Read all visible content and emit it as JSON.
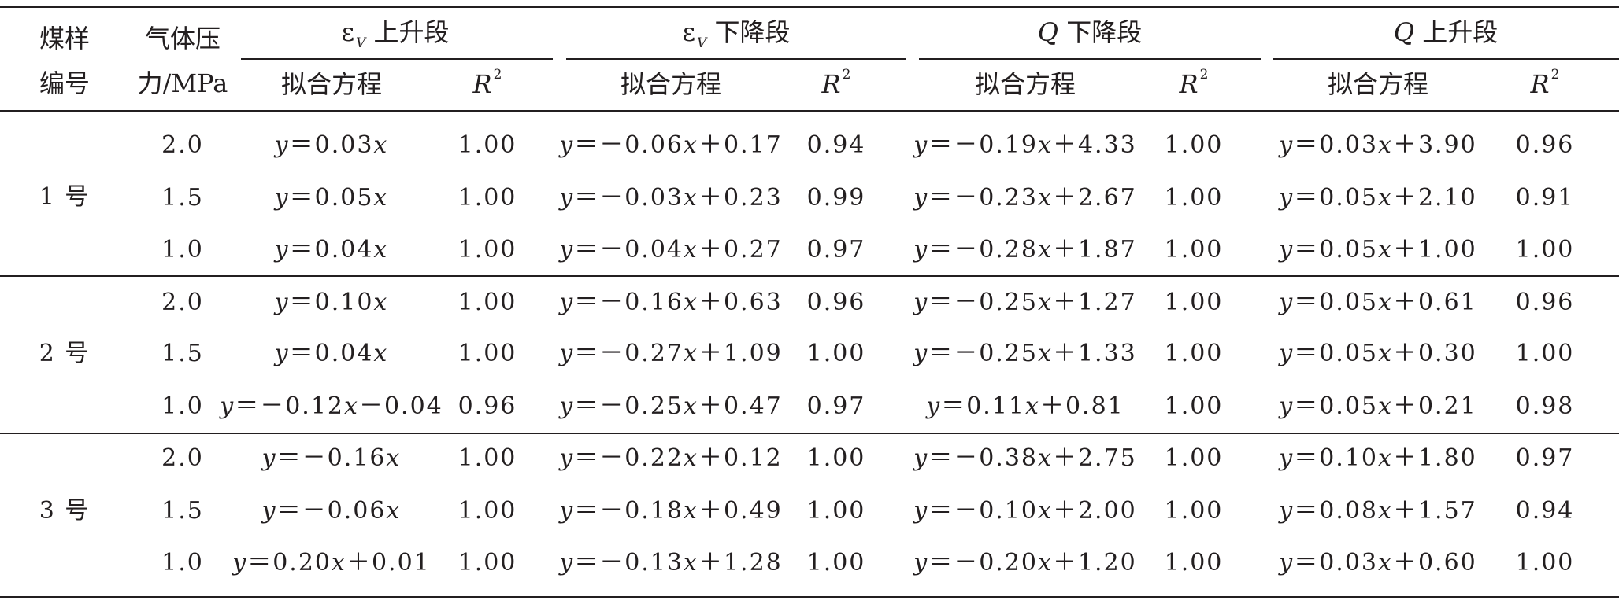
{
  "table": {
    "header": {
      "sample_col": [
        "煤样",
        "编号"
      ],
      "pressure_col": [
        "气体压",
        "力/MPa"
      ],
      "groups": [
        {
          "symbol": "ε",
          "subscript": "V",
          "suffix": " 上升段"
        },
        {
          "symbol": "ε",
          "subscript": "V",
          "suffix": " 下降段"
        },
        {
          "symbol": "Q",
          "subscript": "",
          "suffix": " 下降段"
        },
        {
          "symbol": "Q",
          "subscript": "",
          "suffix": " 上升段"
        }
      ],
      "fit_label": "拟合方程",
      "r2_letter": "R",
      "r2_power": "2"
    },
    "samples": [
      {
        "label": "1 号",
        "rows": [
          {
            "pressure": "2.0",
            "cells": [
              [
                "y＝0.03x",
                "1.00"
              ],
              [
                "y＝－0.06x＋0.17",
                "0.94"
              ],
              [
                "y＝－0.19x＋4.33",
                "1.00"
              ],
              [
                "y＝0.03x＋3.90",
                "0.96"
              ]
            ]
          },
          {
            "pressure": "1.5",
            "cells": [
              [
                "y＝0.05x",
                "1.00"
              ],
              [
                "y＝－0.03x＋0.23",
                "0.99"
              ],
              [
                "y＝－0.23x＋2.67",
                "1.00"
              ],
              [
                "y＝0.05x＋2.10",
                "0.91"
              ]
            ]
          },
          {
            "pressure": "1.0",
            "cells": [
              [
                "y＝0.04x",
                "1.00"
              ],
              [
                "y＝－0.04x＋0.27",
                "0.97"
              ],
              [
                "y＝－0.28x＋1.87",
                "1.00"
              ],
              [
                "y＝0.05x＋1.00",
                "1.00"
              ]
            ]
          }
        ]
      },
      {
        "label": "2 号",
        "rows": [
          {
            "pressure": "2.0",
            "cells": [
              [
                "y＝0.10x",
                "1.00"
              ],
              [
                "y＝－0.16x＋0.63",
                "0.96"
              ],
              [
                "y＝－0.25x＋1.27",
                "1.00"
              ],
              [
                "y＝0.05x＋0.61",
                "0.96"
              ]
            ]
          },
          {
            "pressure": "1.5",
            "cells": [
              [
                "y＝0.04x",
                "1.00"
              ],
              [
                "y＝－0.27x＋1.09",
                "1.00"
              ],
              [
                "y＝－0.25x＋1.33",
                "1.00"
              ],
              [
                "y＝0.05x＋0.30",
                "1.00"
              ]
            ]
          },
          {
            "pressure": "1.0",
            "cells": [
              [
                "y＝－0.12x－0.04",
                "0.96"
              ],
              [
                "y＝－0.25x＋0.47",
                "0.97"
              ],
              [
                "y＝0.11x＋0.81",
                "1.00"
              ],
              [
                "y＝0.05x＋0.21",
                "0.98"
              ]
            ]
          }
        ]
      },
      {
        "label": "3 号",
        "rows": [
          {
            "pressure": "2.0",
            "cells": [
              [
                "y＝－0.16x",
                "1.00"
              ],
              [
                "y＝－0.22x＋0.12",
                "1.00"
              ],
              [
                "y＝－0.38x＋2.75",
                "1.00"
              ],
              [
                "y＝0.10x＋1.80",
                "0.97"
              ]
            ]
          },
          {
            "pressure": "1.5",
            "cells": [
              [
                "y＝－0.06x",
                "1.00"
              ],
              [
                "y＝－0.18x＋0.49",
                "1.00"
              ],
              [
                "y＝－0.10x＋2.00",
                "1.00"
              ],
              [
                "y＝0.08x＋1.57",
                "0.94"
              ]
            ]
          },
          {
            "pressure": "1.0",
            "cells": [
              [
                "y＝0.20x＋0.01",
                "1.00"
              ],
              [
                "y＝－0.13x＋1.28",
                "1.00"
              ],
              [
                "y＝－0.20x＋1.20",
                "1.00"
              ],
              [
                "y＝0.03x＋0.60",
                "1.00"
              ]
            ]
          }
        ]
      }
    ]
  }
}
